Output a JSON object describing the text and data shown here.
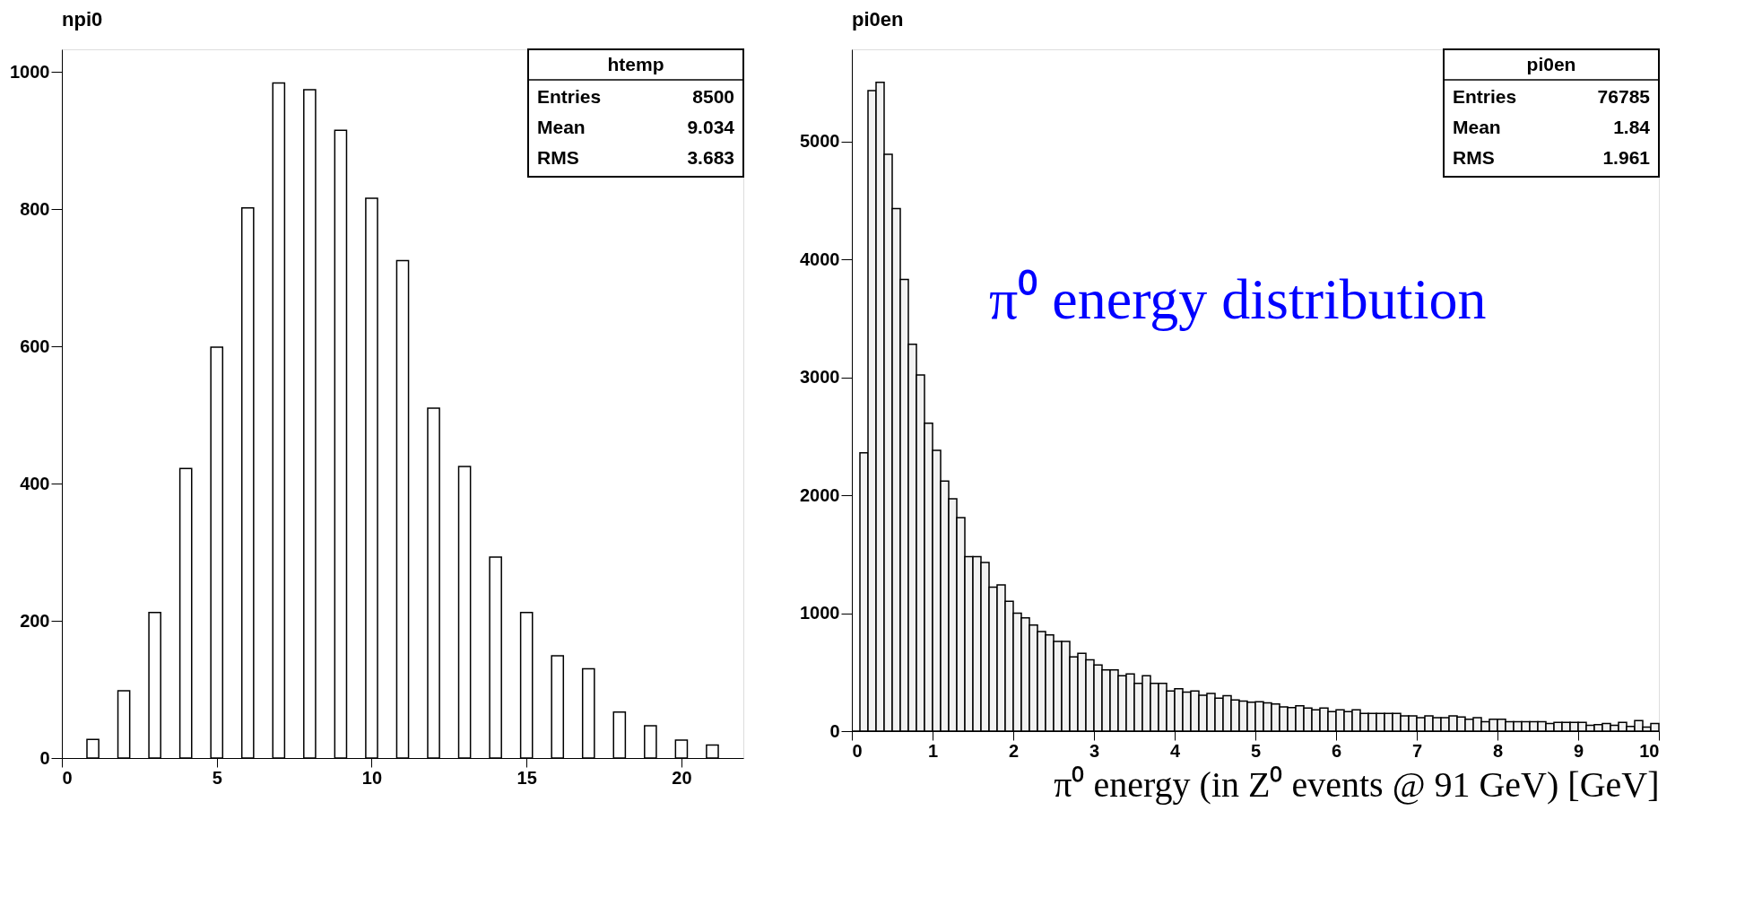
{
  "chart_data": [
    {
      "type": "bar",
      "title": "npi0",
      "x": [
        1,
        2,
        3,
        4,
        5,
        6,
        7,
        8,
        9,
        10,
        11,
        12,
        13,
        14,
        15,
        16,
        17,
        18,
        19,
        20,
        21
      ],
      "values": [
        27,
        98,
        212,
        422,
        599,
        802,
        984,
        974,
        915,
        816,
        725,
        510,
        425,
        293,
        212,
        149,
        130,
        67,
        47,
        26,
        19
      ],
      "color": "#ffffff",
      "xlim": [
        0,
        22
      ],
      "xticks": [
        0,
        5,
        10,
        15,
        20
      ],
      "ylim": [
        0,
        1033
      ],
      "yticks": [
        0,
        200,
        400,
        600,
        800,
        1000
      ],
      "grid": false,
      "annotations": [
        "htemp",
        "Entries 8500",
        "Mean 9.034",
        "RMS 3.683"
      ]
    },
    {
      "type": "histogram",
      "title": "pi0en",
      "xlabel": "π⁰ energy (in Z⁰ events @ 91 GeV) [GeV]",
      "bins": [
        0,
        0.1,
        0.2,
        0.3,
        0.4,
        0.5,
        0.6,
        0.7,
        0.8,
        0.9,
        1,
        1.1,
        1.2,
        1.3,
        1.4,
        1.5,
        1.6,
        1.7,
        1.8,
        1.9,
        2,
        2.1,
        2.2,
        2.3,
        2.4,
        2.5,
        2.6,
        2.7,
        2.8,
        2.9,
        3,
        3.1,
        3.2,
        3.3,
        3.4,
        3.5,
        3.6,
        3.7,
        3.8,
        3.9,
        4,
        4.1,
        4.2,
        4.3,
        4.4,
        4.5,
        4.6,
        4.7,
        4.8,
        4.9,
        5,
        5.1,
        5.2,
        5.3,
        5.4,
        5.5,
        5.6,
        5.7,
        5.8,
        5.9,
        6,
        6.1,
        6.2,
        6.3,
        6.4,
        6.5,
        6.6,
        6.7,
        6.8,
        6.9,
        7,
        7.1,
        7.2,
        7.3,
        7.4,
        7.5,
        7.6,
        7.7,
        7.8,
        7.9,
        8,
        8.1,
        8.2,
        8.3,
        8.4,
        8.5,
        8.6,
        8.7,
        8.8,
        8.9,
        9,
        9.1,
        9.2,
        9.3,
        9.4,
        9.5,
        9.6,
        9.7,
        9.8,
        9.9,
        10
      ],
      "values": [
        0,
        2360,
        5430,
        5500,
        4890,
        4430,
        3830,
        3280,
        3020,
        2610,
        2380,
        2120,
        1970,
        1810,
        1480,
        1480,
        1430,
        1220,
        1240,
        1100,
        1000,
        960,
        900,
        845,
        815,
        760,
        760,
        630,
        660,
        605,
        560,
        520,
        520,
        470,
        485,
        405,
        470,
        405,
        405,
        340,
        360,
        330,
        340,
        305,
        320,
        280,
        300,
        265,
        255,
        245,
        250,
        240,
        230,
        205,
        200,
        215,
        195,
        180,
        195,
        165,
        180,
        165,
        180,
        150,
        150,
        150,
        150,
        150,
        130,
        130,
        115,
        130,
        115,
        115,
        130,
        120,
        100,
        115,
        80,
        100,
        100,
        80,
        80,
        80,
        80,
        80,
        65,
        75,
        75,
        75,
        75,
        50,
        55,
        65,
        50,
        75,
        40,
        90,
        35,
        65
      ],
      "color": "#000000",
      "xlim": [
        0,
        10
      ],
      "xticks": [
        0,
        1,
        2,
        3,
        4,
        5,
        6,
        7,
        8,
        9,
        10
      ],
      "ylim": [
        0,
        5780
      ],
      "yticks": [
        0,
        1000,
        2000,
        3000,
        4000,
        5000
      ],
      "grid": false,
      "annotations": [
        "pi0en",
        "Entries 76785",
        "Mean 1.84",
        "RMS 1.961",
        "π⁰ energy distribution"
      ]
    }
  ]
}
